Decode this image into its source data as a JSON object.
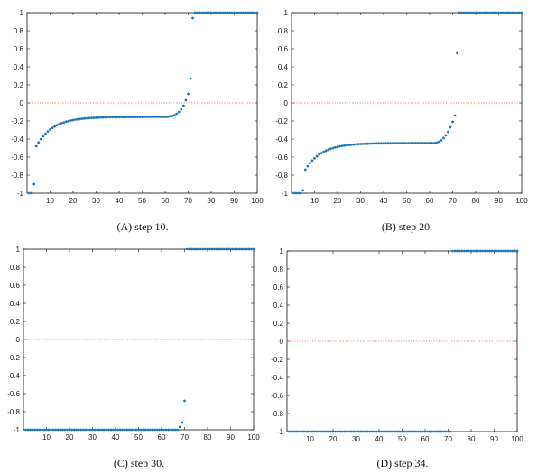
{
  "chart_data": [
    {
      "type": "scatter",
      "caption_letter": "(A)",
      "caption_text": "step 10.",
      "xlim": [
        0,
        100
      ],
      "ylim": [
        -1,
        1
      ],
      "xticks": [
        10,
        20,
        30,
        40,
        50,
        60,
        70,
        80,
        90,
        100
      ],
      "yticks": [
        1,
        0.8,
        0.6,
        0.4,
        0.2,
        0,
        -0.2,
        -0.4,
        -0.6,
        -0.8,
        -1
      ],
      "ytick_labels": [
        "1",
        "0.8",
        "0.6",
        "0.4",
        "0.2",
        "0",
        "-0.2",
        "-0.4",
        "-0.6",
        "-0.8",
        "-1"
      ],
      "reference_line_y": 0,
      "series_color": "#1f77b4",
      "profile": {
        "left_points": [
          [
            1,
            -1
          ],
          [
            2,
            -1
          ],
          [
            3,
            -0.9
          ]
        ],
        "curve_start": 4,
        "curve_start_y": -0.48,
        "plateau": -0.155,
        "rise_start": 61,
        "rise_points": [
          [
            62,
            -0.15
          ],
          [
            63,
            -0.145
          ],
          [
            64,
            -0.135
          ],
          [
            65,
            -0.12
          ],
          [
            66,
            -0.1
          ],
          [
            67,
            -0.07
          ],
          [
            68,
            -0.03
          ],
          [
            69,
            0.03
          ],
          [
            70,
            0.1
          ],
          [
            71,
            0.27
          ],
          [
            72,
            0.94
          ]
        ],
        "right_start": 73,
        "right_value": 1
      }
    },
    {
      "type": "scatter",
      "caption_letter": "(B)",
      "caption_text": "step 20.",
      "xlim": [
        0,
        100
      ],
      "ylim": [
        -1,
        1
      ],
      "xticks": [
        10,
        20,
        30,
        40,
        50,
        60,
        70,
        80,
        90,
        100
      ],
      "yticks": [
        1,
        0.8,
        0.6,
        0.4,
        0.2,
        0,
        -0.2,
        -0.4,
        -0.6,
        -0.8,
        -1
      ],
      "ytick_labels": [
        "1",
        "0.8",
        "0.6",
        "0.4",
        "0.2",
        "0",
        "-0.2",
        "-0.4",
        "-0.6",
        "-0.8",
        "-1"
      ],
      "reference_line_y": 0,
      "series_color": "#1f77b4",
      "profile": {
        "left_points": [
          [
            1,
            -1
          ],
          [
            2,
            -1
          ],
          [
            3,
            -1
          ],
          [
            4,
            -1
          ],
          [
            5,
            -0.97
          ]
        ],
        "curve_start": 6,
        "curve_start_y": -0.74,
        "plateau": -0.445,
        "rise_start": 62,
        "rise_points": [
          [
            63,
            -0.44
          ],
          [
            64,
            -0.43
          ],
          [
            65,
            -0.415
          ],
          [
            66,
            -0.39
          ],
          [
            67,
            -0.36
          ],
          [
            68,
            -0.32
          ],
          [
            69,
            -0.27
          ],
          [
            70,
            -0.21
          ],
          [
            71,
            -0.14
          ],
          [
            72,
            0.55
          ]
        ],
        "right_start": 73,
        "right_value": 1
      }
    },
    {
      "type": "scatter",
      "caption_letter": "(C)",
      "caption_text": "step 30.",
      "xlim": [
        0,
        100
      ],
      "ylim": [
        -1,
        1
      ],
      "xticks": [
        10,
        20,
        30,
        40,
        50,
        60,
        70,
        80,
        90,
        100
      ],
      "yticks": [
        1,
        0.8,
        0.6,
        0.4,
        0.2,
        0,
        -0.2,
        -0.4,
        -0.6,
        -0.8,
        -1
      ],
      "ytick_labels": [
        "1",
        "0.8",
        "0.6",
        "0.4",
        "0.2",
        "0",
        "-0.2",
        "-0.4",
        "-0.6",
        "-0.8",
        "-1"
      ],
      "reference_line_y": 0,
      "series_color": "#1f77b4",
      "profile": {
        "left_points": [],
        "flat_left_end": 67,
        "flat_left_value": -1,
        "rise_points": [
          [
            68,
            -0.97
          ],
          [
            69,
            -0.92
          ],
          [
            70,
            -0.68
          ]
        ],
        "right_start": 71,
        "right_value": 1
      }
    },
    {
      "type": "scatter",
      "caption_letter": "(D)",
      "caption_text": "step 34.",
      "xlim": [
        0,
        100
      ],
      "ylim": [
        -1,
        1
      ],
      "xticks": [
        10,
        20,
        30,
        40,
        50,
        60,
        70,
        80,
        90,
        100
      ],
      "yticks": [
        1,
        0.8,
        0.6,
        0.4,
        0.2,
        0,
        -0.2,
        -0.4,
        -0.6,
        -0.8,
        -1
      ],
      "ytick_labels": [
        "1",
        "0.8",
        "0.6",
        "0.4",
        "0.2",
        "0",
        "-0.2",
        "-0.4",
        "-0.6",
        "-0.8",
        "-1"
      ],
      "reference_line_y": 0,
      "series_color": "#1f77b4",
      "profile": {
        "left_points": [],
        "flat_left_end": 71,
        "flat_left_value": -1,
        "rise_points": [],
        "right_start": 72,
        "right_value": 1
      }
    }
  ]
}
